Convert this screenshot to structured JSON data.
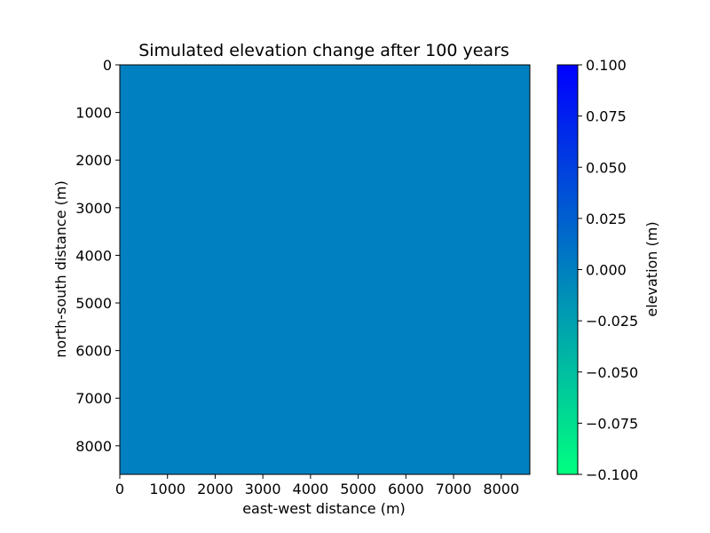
{
  "chart_data": {
    "type": "heatmap",
    "title": "Simulated elevation change after 100 years",
    "xlabel": "east-west distance (m)",
    "ylabel": "north-south distance (m)",
    "xlim": [
      0,
      8600
    ],
    "ylim": [
      8600,
      0
    ],
    "x_ticks": [
      0,
      1000,
      2000,
      3000,
      4000,
      5000,
      6000,
      7000,
      8000
    ],
    "y_ticks": [
      0,
      1000,
      2000,
      3000,
      4000,
      5000,
      6000,
      7000,
      8000
    ],
    "value": 0.0,
    "fill_color": "#0080c0",
    "colorbar": {
      "label": "elevation (m)",
      "vmin": -0.1,
      "vmax": 0.1,
      "ticks": [
        -0.1,
        -0.075,
        -0.05,
        -0.025,
        0.0,
        0.025,
        0.05,
        0.075,
        0.1
      ],
      "tick_labels": [
        "−0.100",
        "−0.075",
        "−0.050",
        "−0.025",
        "0.000",
        "0.025",
        "0.050",
        "0.075",
        "0.100"
      ],
      "colormap": "winter",
      "color_low": "#00ff80",
      "color_high": "#0000ff"
    }
  }
}
